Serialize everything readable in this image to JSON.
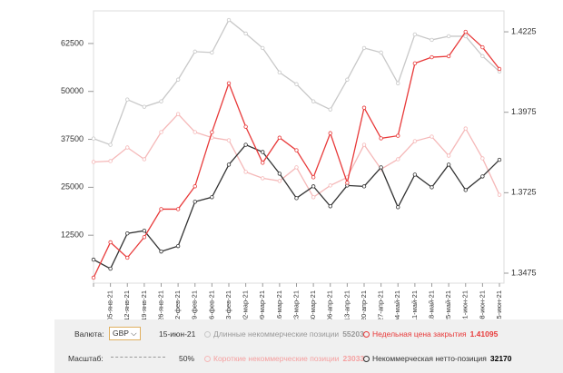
{
  "chart_data": {
    "type": "line",
    "categories": [
      null,
      "05-янв-21",
      "12-янв-21",
      "19-янв-21",
      "26-янв-21",
      "02-фев-21",
      "09-фев-21",
      "16-фев-21",
      "23-фев-21",
      "02-мар-21",
      "09-мар-21",
      "16-мар-21",
      "23-мар-21",
      "30-мар-21",
      "06-апр-21",
      "13-апр-21",
      "20-апр-21",
      "27-апр-21",
      "04-май-21",
      "11-май-21",
      "18-май-21",
      "25-май-21",
      "01-июн-21",
      "08-июн-21",
      "15-июн-21"
    ],
    "ylim": [
      0,
      71000
    ],
    "yticks": [
      12500,
      25000,
      37500,
      50000,
      62500
    ],
    "y2lim": [
      1.3444,
      1.429
    ],
    "y2ticks": [
      1.3475,
      1.3725,
      1.3975,
      1.4225
    ],
    "series": [
      {
        "name": "Длинные некоммерческие позиции",
        "color": "#c8c8c8",
        "values": [
          37700,
          36080,
          47880,
          45990,
          47410,
          53070,
          60380,
          60140,
          68630,
          65090,
          61320,
          54950,
          51890,
          47410,
          45280,
          53070,
          61320,
          60140,
          52120,
          64860,
          63440,
          64390,
          64390,
          59200,
          55203
        ]
      },
      {
        "name": "Короткие некоммерческие позиции",
        "color": "#f5b8b8",
        "values": [
          31600,
          31840,
          35380,
          32310,
          39390,
          44100,
          39390,
          37970,
          37260,
          29010,
          27360,
          26650,
          30190,
          22410,
          25470,
          27590,
          36080,
          29720,
          32310,
          37030,
          38210,
          33250,
          40330,
          32550,
          23033
        ]
      },
      {
        "name": "Некоммерческая нетто-позиция",
        "color": "#333333",
        "values": [
          6130,
          3770,
          12970,
          13680,
          8250,
          9670,
          21230,
          22410,
          30900,
          36080,
          34200,
          28540,
          22170,
          25240,
          20050,
          25470,
          25240,
          30190,
          19810,
          28300,
          25000,
          30900,
          24290,
          27830,
          32170
        ]
      },
      {
        "name": "Недельная цена закрытия",
        "color": "#e83a3a",
        "axis": "y2",
        "values": [
          1.3461,
          1.3571,
          1.3523,
          1.3587,
          1.3674,
          1.3674,
          1.3745,
          1.3913,
          1.4065,
          1.393,
          1.3818,
          1.3896,
          1.3857,
          1.3773,
          1.391,
          1.3756,
          1.3989,
          1.3894,
          1.3902,
          1.4127,
          1.4146,
          1.4149,
          1.4225,
          1.4177,
          1.41095
        ]
      }
    ]
  },
  "controls": {
    "currency_label": "Валюта:",
    "currency": "GBP",
    "scale_label": "Масштаб:",
    "scale": "50%"
  }
}
